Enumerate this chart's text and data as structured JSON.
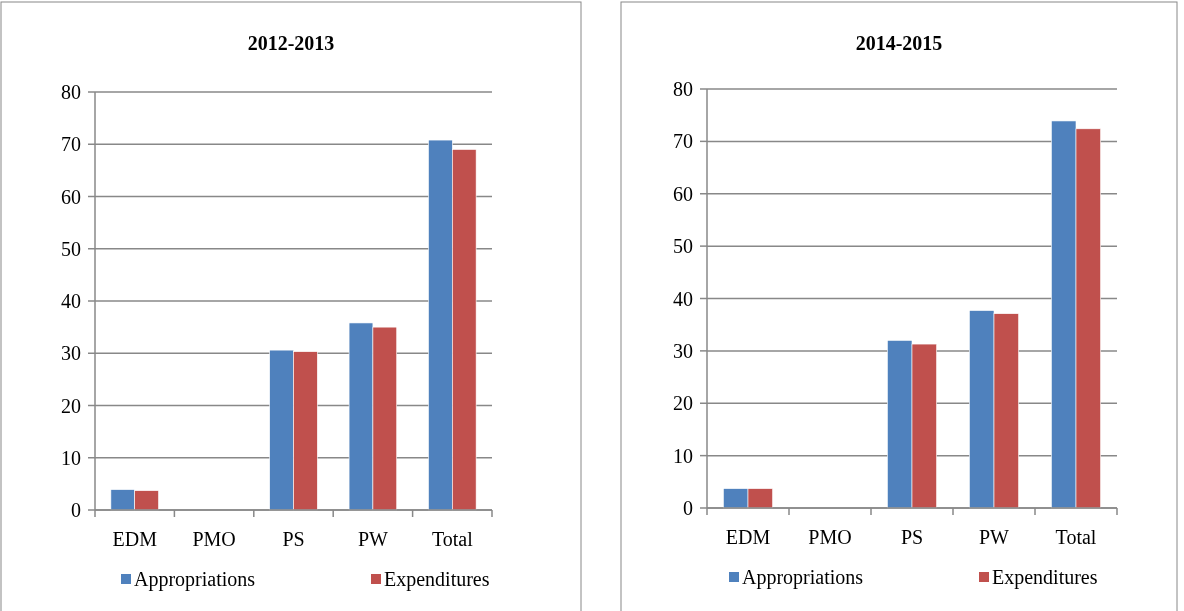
{
  "chart_data": [
    {
      "type": "bar",
      "title": "2012-2013",
      "categories": [
        "EDM",
        "PMO",
        "PS",
        "PW",
        "Total"
      ],
      "ylim": [
        0,
        80
      ],
      "yticks": [
        0,
        10,
        20,
        30,
        40,
        50,
        60,
        70,
        80
      ],
      "grid": "y",
      "legend": "bottom",
      "series": [
        {
          "name": "Appropriations",
          "color": "#4f81bd",
          "values": [
            3.9,
            0,
            30.6,
            35.8,
            70.8
          ]
        },
        {
          "name": "Expenditures",
          "color": "#c0504d",
          "values": [
            3.7,
            0,
            30.3,
            35.0,
            69.0
          ]
        }
      ]
    },
    {
      "type": "bar",
      "title": "2014-2015",
      "categories": [
        "EDM",
        "PMO",
        "PS",
        "PW",
        "Total"
      ],
      "ylim": [
        0,
        80
      ],
      "yticks": [
        0,
        10,
        20,
        30,
        40,
        50,
        60,
        70,
        80
      ],
      "grid": "y",
      "legend": "bottom",
      "series": [
        {
          "name": "Appropriations",
          "color": "#4f81bd",
          "values": [
            3.7,
            0,
            32.0,
            37.7,
            73.9
          ]
        },
        {
          "name": "Expenditures",
          "color": "#c0504d",
          "values": [
            3.7,
            0,
            31.3,
            37.1,
            72.4
          ]
        }
      ]
    }
  ]
}
